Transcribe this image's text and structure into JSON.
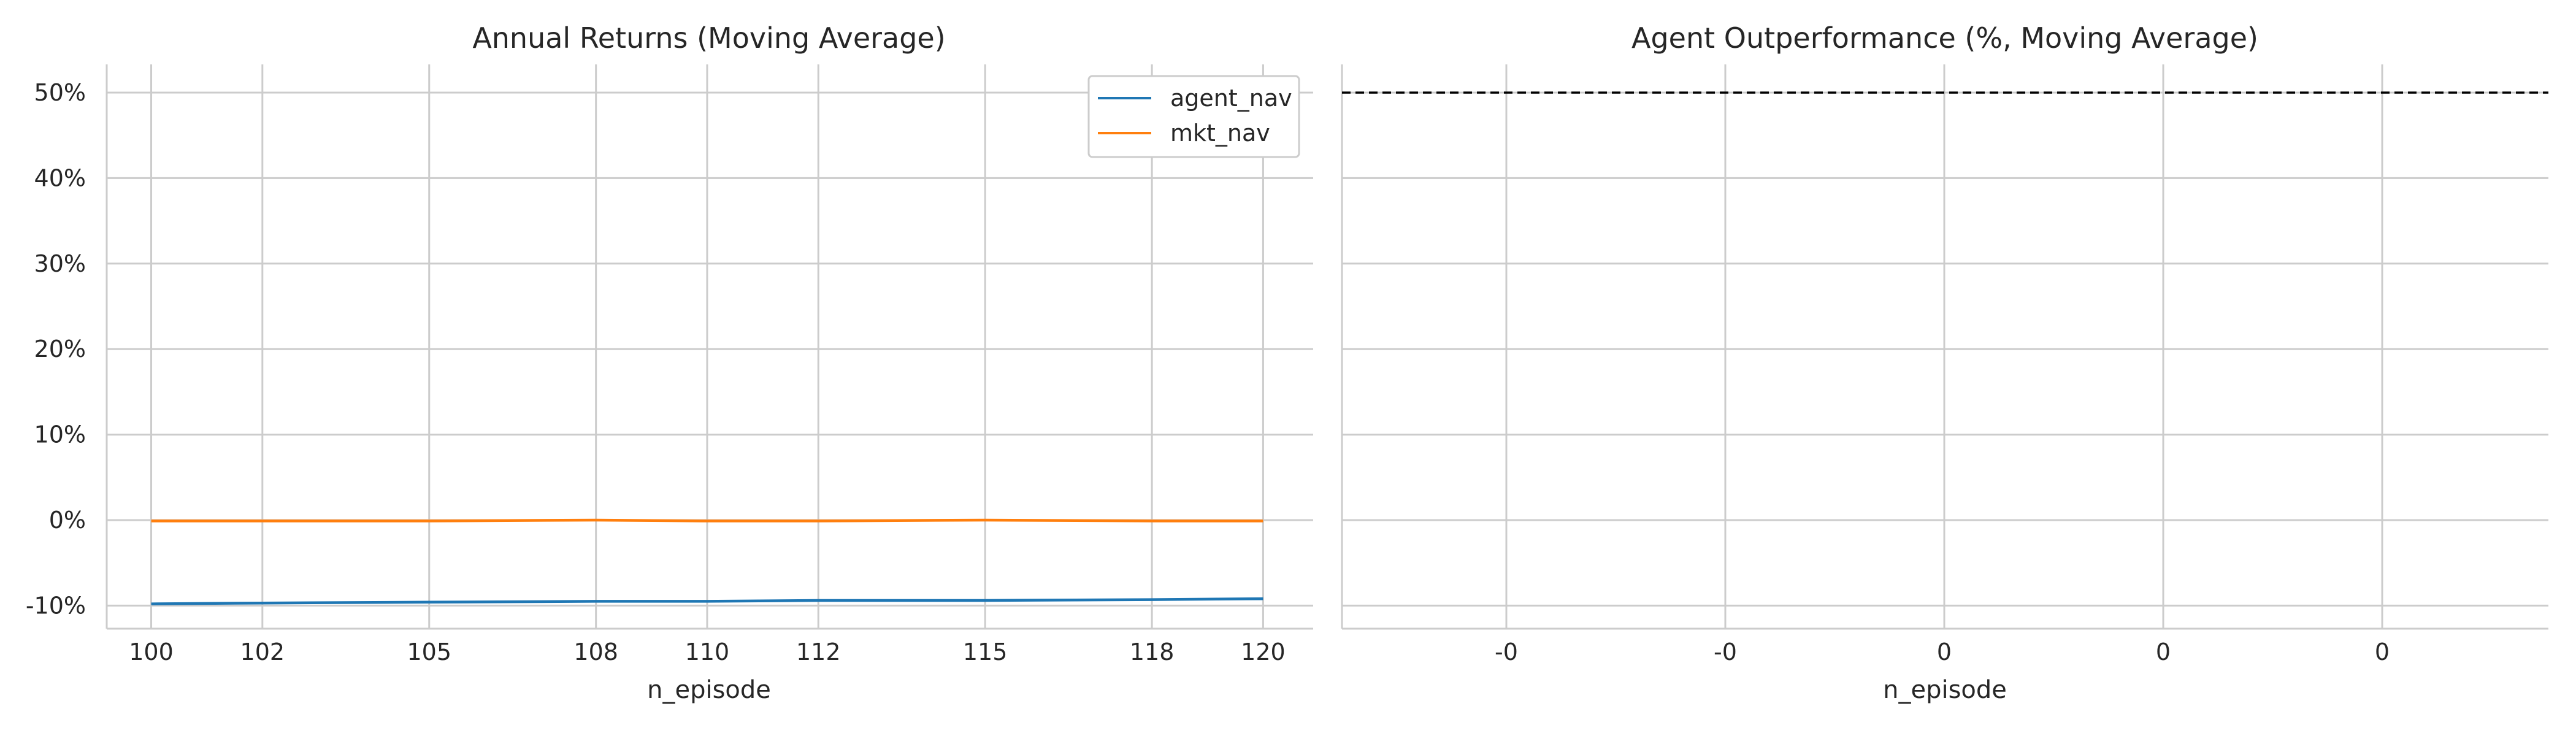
{
  "chart_data": [
    {
      "type": "line",
      "title": "Annual Returns (Moving Average)",
      "xlabel": "n_episode",
      "ylabel": "",
      "x": [
        100,
        102,
        105,
        108,
        110,
        112,
        115,
        118,
        120
      ],
      "x_tick_labels": [
        "100",
        "102",
        "105",
        "108",
        "110",
        "112",
        "115",
        "118",
        "120"
      ],
      "xlim": [
        99.2,
        120.9
      ],
      "ylim": [
        -0.127,
        0.533
      ],
      "y_ticks": [
        -0.1,
        0,
        0.1,
        0.2,
        0.3,
        0.4,
        0.5
      ],
      "y_tick_labels": [
        "-10%",
        "0%",
        "10%",
        "20%",
        "30%",
        "40%",
        "50%"
      ],
      "grid": true,
      "legend_position": "upper-right",
      "series": [
        {
          "name": "agent_nav",
          "color": "#1f77b4",
          "values": [
            -0.098,
            -0.097,
            -0.096,
            -0.095,
            -0.095,
            -0.094,
            -0.094,
            -0.093,
            -0.092
          ]
        },
        {
          "name": "mkt_nav",
          "color": "#ff7f0e",
          "values": [
            -0.001,
            -0.001,
            -0.001,
            0.0,
            -0.001,
            -0.001,
            0.0,
            -0.001,
            -0.001
          ]
        }
      ]
    },
    {
      "type": "line",
      "title": "Agent Outperformance (%, Moving Average)",
      "xlabel": "n_episode",
      "ylabel": "",
      "x_tick_labels": [
        "-0",
        "-0",
        "0",
        "0",
        "0"
      ],
      "ylim": [
        -0.127,
        0.533
      ],
      "grid": true,
      "series": [],
      "reference_line": {
        "y": 0.5,
        "style": "dashed",
        "color": "#000000"
      }
    }
  ]
}
